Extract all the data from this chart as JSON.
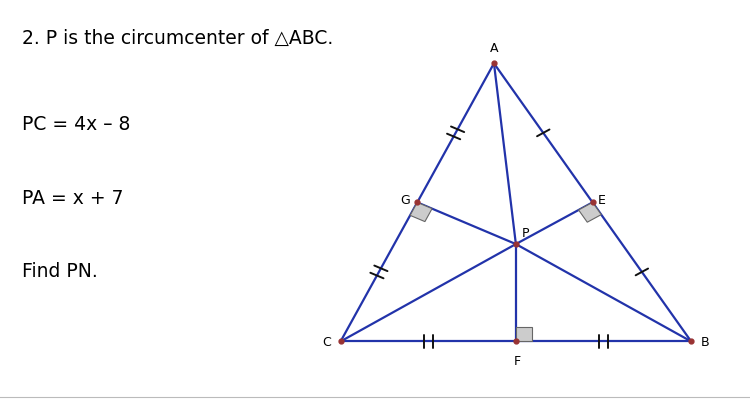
{
  "title_line1": "2. P is the circumcenter of △ABC.",
  "title_line2": "PC = 4x – 8",
  "title_line3": "PA = x + 7",
  "title_line4": "Find PN.",
  "bg_color": "#ffffff",
  "text_color": "#000000",
  "triangle_color": "#2233aa",
  "point_color": "#993333",
  "font_size_text": 13.5,
  "tick_color": "#111111",
  "right_angle_face": "#cccccc",
  "right_angle_edge": "#666666"
}
